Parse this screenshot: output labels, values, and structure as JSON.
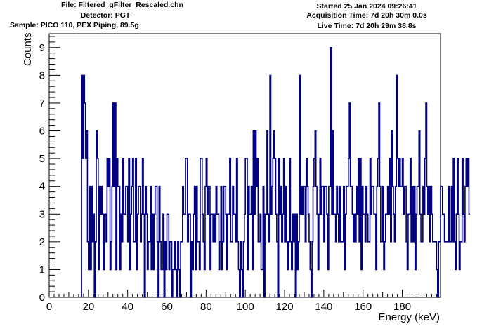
{
  "header": {
    "file": "File: Filtered_gFilter_Rescaled.chn",
    "detector": "Detector: PGT",
    "sample": "Sample: PICO 110, PEX Piping, 89.5g",
    "started": "Started 25 Jan 2024 09:26:41",
    "acquisition": "Acquisition Time: 7d 20h 30m 0.0s",
    "live": "Live Time: 7d 20h 29m 38.8s"
  },
  "chart_data": {
    "type": "line",
    "style": "step histogram",
    "title": "",
    "xlabel": "Energy (keV)",
    "ylabel": "Counts",
    "xlim": [
      0,
      199.5
    ],
    "ylim": [
      0,
      9.5
    ],
    "grid": false,
    "color": "#000080",
    "x_ticks": [
      0,
      20,
      40,
      60,
      80,
      100,
      120,
      140,
      160,
      180
    ],
    "y_ticks": [
      0,
      1,
      2,
      3,
      4,
      5,
      6,
      7,
      8,
      9
    ],
    "x_start": 16.5,
    "bin_width": 0.5,
    "values": [
      8,
      5,
      8,
      7,
      5,
      6,
      2,
      1,
      4,
      1,
      4,
      2,
      3,
      0,
      2,
      6,
      5,
      1,
      4,
      3,
      4,
      3,
      1,
      3,
      3,
      2,
      5,
      4,
      5,
      1,
      2,
      4,
      7,
      4,
      7,
      1,
      5,
      4,
      4,
      1,
      3,
      2,
      5,
      3,
      3,
      4,
      4,
      2,
      5,
      1,
      3,
      4,
      5,
      2,
      2,
      5,
      1,
      3,
      4,
      4,
      2,
      3,
      5,
      3,
      0,
      4,
      3,
      1,
      2,
      2,
      4,
      1,
      3,
      1,
      3,
      4,
      4,
      2,
      0,
      4,
      2,
      1,
      1,
      3,
      0,
      2,
      1,
      3,
      3,
      1,
      2,
      2,
      0,
      1,
      1,
      2,
      1,
      0,
      2,
      1,
      0,
      2,
      2,
      4,
      3,
      3,
      5,
      5,
      2,
      3,
      3,
      0,
      2,
      1,
      3,
      4,
      1,
      4,
      2,
      2,
      1,
      5,
      5,
      3,
      2,
      1,
      4,
      5,
      3,
      4,
      4,
      1,
      3,
      3,
      2,
      3,
      2,
      4,
      3,
      3,
      1,
      2,
      4,
      1,
      2,
      4,
      4,
      3,
      1,
      3,
      3,
      5,
      2,
      2,
      4,
      3,
      3,
      2,
      5,
      2,
      1,
      0,
      2,
      1,
      0,
      2,
      3,
      5,
      5,
      1,
      4,
      3,
      3,
      4,
      1,
      6,
      3,
      6,
      4,
      5,
      2,
      2,
      3,
      1,
      1,
      4,
      0,
      3,
      3,
      6,
      3,
      2,
      8,
      3,
      4,
      5,
      6,
      5,
      3,
      2,
      0,
      5,
      3,
      4,
      2,
      3,
      5,
      2,
      4,
      2,
      1,
      2,
      5,
      2,
      1,
      3,
      2,
      3,
      0,
      3,
      1,
      2,
      8,
      3,
      4,
      3,
      4,
      4,
      2,
      5,
      4,
      3,
      2,
      1,
      0,
      2,
      4,
      5,
      6,
      4,
      3,
      1,
      3,
      5,
      3,
      4,
      4,
      2,
      4,
      4,
      3,
      1,
      4,
      4,
      9,
      3,
      6,
      3,
      3,
      2,
      4,
      3,
      2,
      4,
      2,
      2,
      2,
      4,
      1,
      3,
      4,
      4,
      5,
      7,
      4,
      4,
      3,
      2,
      3,
      2,
      4,
      3,
      5,
      2,
      5,
      1,
      4,
      3,
      3,
      2,
      4,
      3,
      2,
      2,
      5,
      3,
      4,
      4,
      3,
      3,
      1,
      4,
      5,
      7,
      4,
      2,
      2,
      4,
      1,
      2,
      3,
      3,
      4,
      3,
      5,
      2,
      6,
      4,
      3,
      2,
      4,
      8,
      5,
      4,
      5,
      4,
      4,
      5,
      3,
      4,
      4,
      2,
      1,
      3,
      3,
      5,
      2,
      4,
      2,
      4,
      1,
      3,
      4,
      4,
      6,
      3,
      2,
      2,
      4,
      3,
      5,
      7,
      4,
      3,
      4,
      2,
      4,
      3,
      2,
      2,
      2,
      2,
      1,
      0,
      2,
      2,
      4,
      4,
      3,
      3,
      2,
      2,
      2,
      2,
      4,
      2,
      2,
      4,
      2,
      5,
      2,
      1,
      3,
      5,
      3,
      1,
      2,
      2,
      5,
      3,
      2,
      4,
      5,
      4,
      5,
      3
    ]
  }
}
